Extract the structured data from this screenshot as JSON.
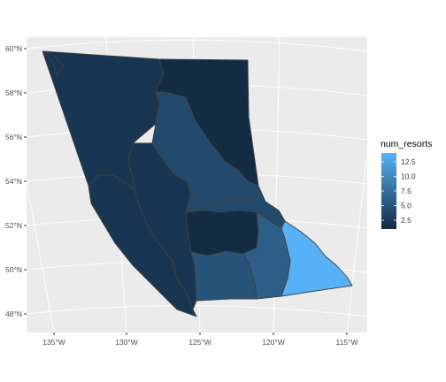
{
  "chart_data": {
    "type": "choropleth",
    "title": "",
    "xlabel": "",
    "ylabel": "",
    "x_ticks": [
      "135°W",
      "130°W",
      "125°W",
      "120°W",
      "115°W"
    ],
    "y_ticks": [
      "60°N",
      "58°N",
      "56°N",
      "54°N",
      "52°N",
      "50°N",
      "48°N"
    ],
    "legend": {
      "title": "num_resorts",
      "placement": "right",
      "ticks": [
        "12.5",
        "10.0",
        "7.5",
        "5.0",
        "2.5"
      ],
      "range": [
        1,
        14
      ],
      "low_color": "#132B43",
      "high_color": "#56B1F7"
    },
    "regions": [
      {
        "id": "northwest",
        "value": 2
      },
      {
        "id": "northeast",
        "value": 1
      },
      {
        "id": "north_central",
        "value": 4
      },
      {
        "id": "coast_west",
        "value": 2
      },
      {
        "id": "coast_central",
        "value": 2
      },
      {
        "id": "central_east",
        "value": 4
      },
      {
        "id": "cariboo_south",
        "value": 1
      },
      {
        "id": "okanagan",
        "value": 5
      },
      {
        "id": "thompson_south",
        "value": 6
      },
      {
        "id": "kootenay",
        "value": 14
      }
    ],
    "grid": true,
    "panel_background": "#EBEBEB",
    "border_color": "#404040"
  }
}
